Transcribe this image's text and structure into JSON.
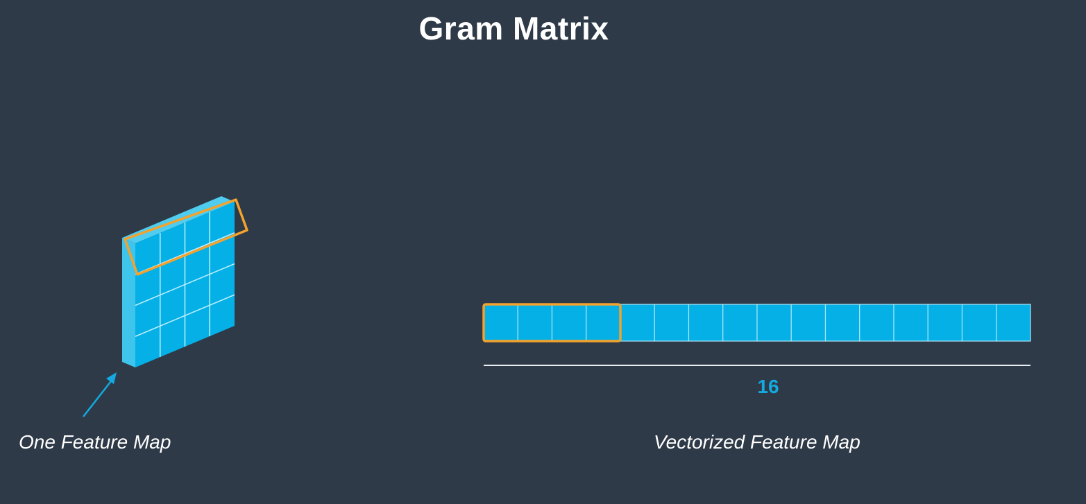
{
  "slide": {
    "title": "Gram Matrix",
    "background_color": "#2e3a48",
    "text_color": "#ffffff"
  },
  "feature_map": {
    "caption": "One Feature Map",
    "rows": 4,
    "cols": 4,
    "fill_color": "#04b0e6",
    "highlight_color": "#f4a22d",
    "highlighted_row": 1,
    "arrow_color": "#14a9df"
  },
  "vector": {
    "caption": "Vectorized Feature Map",
    "cells": 16,
    "highlighted_cells": 4,
    "length_label": "16",
    "length_label_color": "#14a9df",
    "fill_color": "#04b0e6",
    "highlight_color": "#f4a22d",
    "measure_line_color": "#e8eef3"
  }
}
